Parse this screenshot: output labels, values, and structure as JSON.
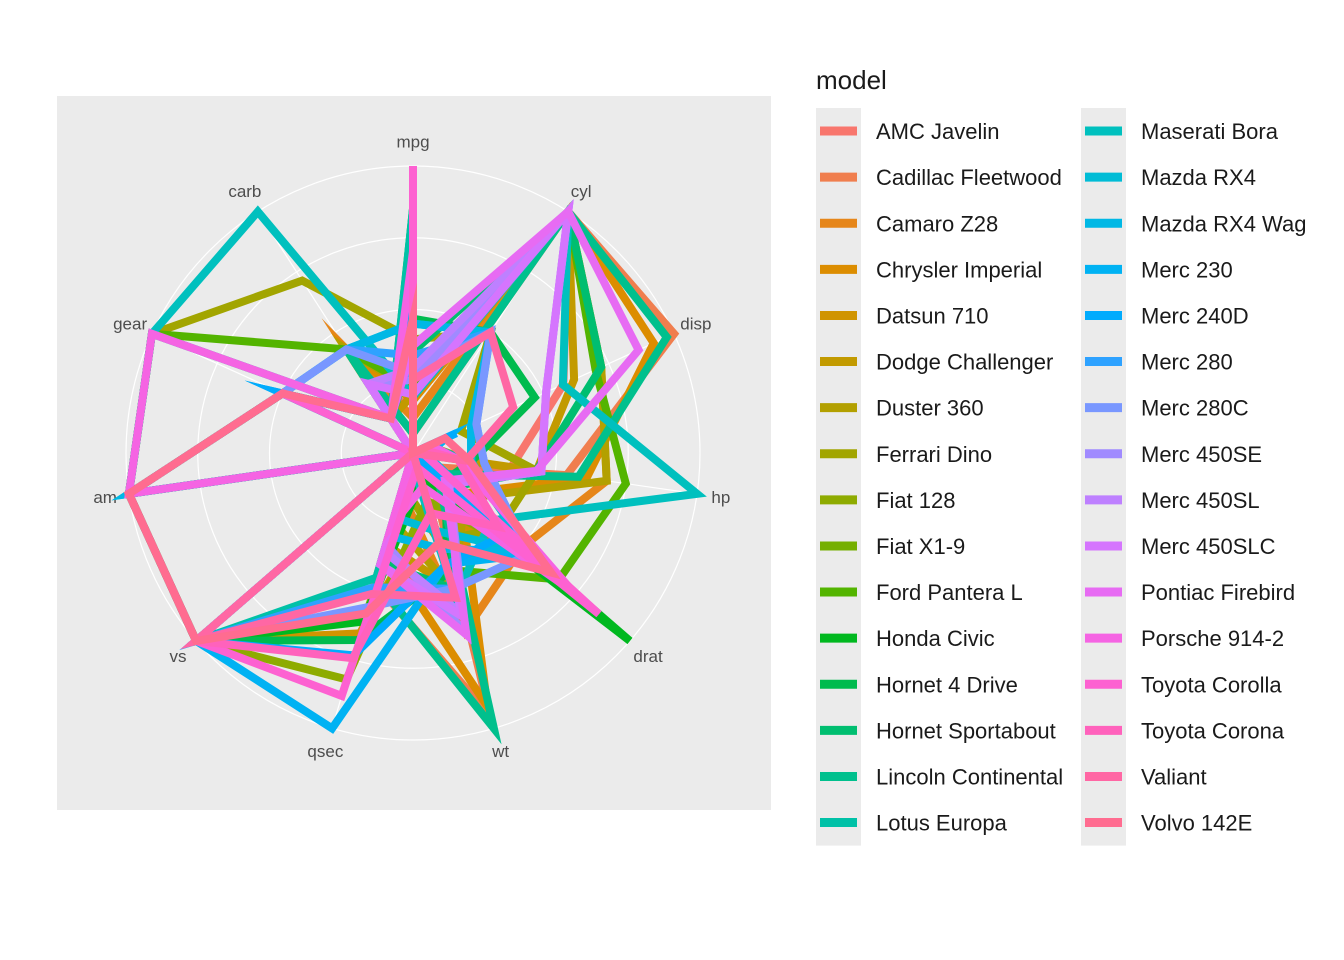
{
  "chart_data": {
    "type": "radar",
    "legend_title": "model",
    "legend_position": "right",
    "grid": true,
    "scale": "each variable rescaled to 0-1 (min-max)",
    "axes": [
      "mpg",
      "cyl",
      "disp",
      "hp",
      "drat",
      "wt",
      "qsec",
      "vs",
      "am",
      "gear",
      "carb"
    ],
    "series": [
      {
        "name": "AMC Javelin",
        "color": "#F8766D",
        "values": [
          0.217,
          1,
          0.576,
          0.346,
          0.18,
          0.526,
          0.399,
          0,
          0,
          0,
          0.143
        ]
      },
      {
        "name": "Cadillac Fleetwood",
        "color": "#F07E4E",
        "values": [
          0.068,
          1,
          1,
          0.541,
          0.074,
          0.956,
          0.472,
          0,
          0,
          0,
          0.429
        ]
      },
      {
        "name": "Camaro Z28",
        "color": "#E6861A",
        "values": [
          0.123,
          1,
          0.721,
          0.682,
          0.502,
          0.647,
          0.143,
          0,
          0,
          0,
          0.429
        ]
      },
      {
        "name": "Chrysler Imperial",
        "color": "#DC8D00",
        "values": [
          0.183,
          1,
          0.922,
          0.611,
          0.217,
          0.92,
          0.356,
          0,
          0,
          0,
          0.429
        ]
      },
      {
        "name": "Datsun 710",
        "color": "#D09400",
        "values": [
          0.534,
          0,
          0.06,
          0.205,
          0.525,
          0.206,
          0.655,
          1,
          1,
          0.5,
          0
        ]
      },
      {
        "name": "Dodge Challenger",
        "color": "#C29A00",
        "values": [
          0.204,
          1,
          0.617,
          0.435,
          0,
          0.492,
          0.333,
          0,
          0,
          0,
          0.143
        ]
      },
      {
        "name": "Duster 360",
        "color": "#B3A000",
        "values": [
          0.217,
          1,
          0.721,
          0.682,
          0.24,
          0.498,
          0.249,
          0,
          0,
          0,
          0.429
        ]
      },
      {
        "name": "Ferrari Dino",
        "color": "#A2A500",
        "values": [
          0.396,
          0.5,
          0.184,
          0.435,
          0.399,
          0.32,
          0.119,
          0,
          1,
          1,
          0.714
        ]
      },
      {
        "name": "Fiat 128",
        "color": "#8EAB00",
        "values": [
          0.957,
          0,
          0.006,
          0.049,
          0.53,
          0.174,
          0.822,
          1,
          1,
          0.5,
          0
        ]
      },
      {
        "name": "Fiat X1-9",
        "color": "#75AF00",
        "values": [
          0.723,
          0,
          0.01,
          0.049,
          0.53,
          0.073,
          0.59,
          1,
          1,
          0.5,
          0
        ]
      },
      {
        "name": "Ford Pantera L",
        "color": "#53B400",
        "values": [
          0.23,
          1,
          0.699,
          0.749,
          0.673,
          0.424,
          0,
          0,
          1,
          1,
          0.429
        ]
      },
      {
        "name": "Honda Civic",
        "color": "#00B81F",
        "values": [
          0.851,
          0,
          0.006,
          0,
          1,
          0.099,
          0.612,
          1,
          1,
          0.5,
          0.143
        ]
      },
      {
        "name": "Hornet 4 Drive",
        "color": "#00BB4E",
        "values": [
          0.468,
          0.5,
          0.466,
          0.205,
          0.147,
          0.435,
          0.679,
          1,
          0,
          0,
          0
        ]
      },
      {
        "name": "Hornet Sportabout",
        "color": "#00BE70",
        "values": [
          0.353,
          1,
          0.721,
          0.435,
          0.18,
          0.493,
          0.399,
          0,
          0,
          0,
          0.143
        ]
      },
      {
        "name": "Lincoln Continental",
        "color": "#00C08D",
        "values": [
          0.068,
          1,
          0.972,
          0.583,
          0.111,
          1,
          0.464,
          0,
          0,
          0,
          0.429
        ]
      },
      {
        "name": "Lotus Europa",
        "color": "#00C1A7",
        "values": [
          0.851,
          0,
          0.06,
          0.187,
          0.565,
          0,
          0.453,
          1,
          1,
          1,
          0.143
        ]
      },
      {
        "name": "Maserati Bora",
        "color": "#00C0BE",
        "values": [
          0.196,
          1,
          0.574,
          1,
          0.359,
          0.527,
          0.024,
          0,
          1,
          1,
          1
        ]
      },
      {
        "name": "Mazda RX4",
        "color": "#00BCD6",
        "values": [
          0.451,
          0.5,
          0.222,
          0.205,
          0.525,
          0.283,
          0.233,
          0,
          1,
          0.5,
          0.429
        ]
      },
      {
        "name": "Mazda RX4 Wag",
        "color": "#00B8E5",
        "values": [
          0.451,
          0.5,
          0.222,
          0.205,
          0.525,
          0.348,
          0.3,
          0,
          1,
          0.5,
          0.429
        ]
      },
      {
        "name": "Merc 230",
        "color": "#00B2F3",
        "values": [
          0.534,
          0,
          0.129,
          0.049,
          0.539,
          0.403,
          1,
          1,
          0,
          0.5,
          0.143
        ]
      },
      {
        "name": "Merc 240D",
        "color": "#00ABFD",
        "values": [
          0.6,
          0,
          0.166,
          0,
          0.429,
          0.407,
          0.735,
          1,
          0,
          0.5,
          0.143
        ]
      },
      {
        "name": "Merc 280",
        "color": "#2EA2FF",
        "values": [
          0.34,
          0.5,
          0.243,
          0.251,
          0.539,
          0.493,
          0.488,
          1,
          0,
          0.5,
          0.429
        ]
      },
      {
        "name": "Merc 280C",
        "color": "#7997FF",
        "values": [
          0.277,
          0.5,
          0.243,
          0.251,
          0.539,
          0.493,
          0.56,
          1,
          0,
          0.5,
          0.429
        ]
      },
      {
        "name": "Merc 450SE",
        "color": "#A08AFF",
        "values": [
          0.255,
          1,
          0.51,
          0.452,
          0.166,
          0.654,
          0.333,
          0,
          0,
          0,
          0.286
        ]
      },
      {
        "name": "Merc 450SL",
        "color": "#BE80FF",
        "values": [
          0.294,
          1,
          0.51,
          0.452,
          0.166,
          0.579,
          0.357,
          0,
          0,
          0,
          0.286
        ]
      },
      {
        "name": "Merc 450SLC",
        "color": "#D575FE",
        "values": [
          0.204,
          1,
          0.51,
          0.452,
          0.166,
          0.59,
          0.405,
          0,
          0,
          0,
          0.286
        ]
      },
      {
        "name": "Pontiac Firebird",
        "color": "#E76BF3",
        "values": [
          0.374,
          1,
          0.864,
          0.435,
          0.147,
          0.66,
          0.405,
          0,
          0,
          0,
          0.143
        ]
      },
      {
        "name": "Porsche 914-2",
        "color": "#F564E3",
        "values": [
          0.702,
          0,
          0.066,
          0.159,
          0.737,
          0.124,
          0.262,
          0,
          1,
          1,
          0.143
        ]
      },
      {
        "name": "Toyota Corolla",
        "color": "#FD61D1",
        "values": [
          1,
          0,
          0,
          0.04,
          0.857,
          0.052,
          0.882,
          1,
          1,
          0.5,
          0
        ]
      },
      {
        "name": "Toyota Corona",
        "color": "#FF62BC",
        "values": [
          0.472,
          0,
          0.032,
          0.159,
          0.392,
          0.219,
          0.745,
          1,
          0,
          0,
          0
        ]
      },
      {
        "name": "Valiant",
        "color": "#FF67A4",
        "values": [
          0.255,
          0.5,
          0.384,
          0.187,
          0,
          0.526,
          0.512,
          1,
          0,
          0,
          0
        ]
      },
      {
        "name": "Volvo 142E",
        "color": "#FF6C90",
        "values": [
          0.468,
          0,
          0.123,
          0.201,
          0.636,
          0.325,
          0.583,
          1,
          1,
          0.5,
          0.143
        ]
      }
    ]
  }
}
